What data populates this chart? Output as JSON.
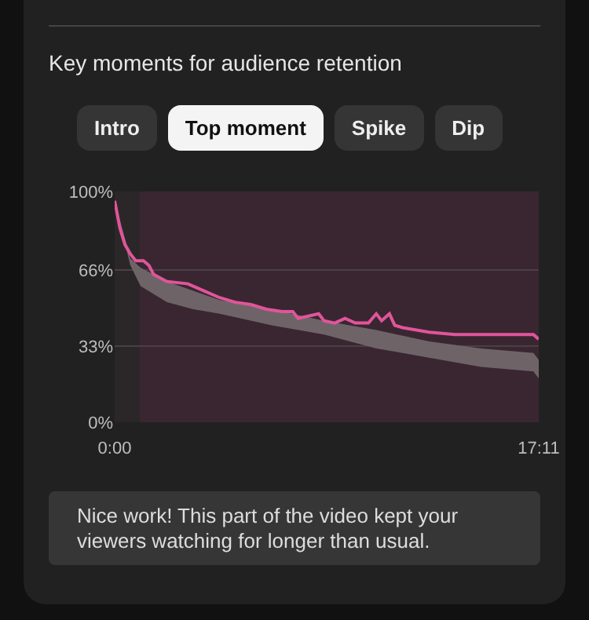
{
  "chart_data": {
    "type": "line",
    "title": "Key moments for audience retention",
    "annotations": [
      "Intro",
      "Top moment",
      "Spike",
      "Dip",
      "Nice work! This part of the video kept your viewers watching for longer than usual."
    ],
    "series": [
      {
        "color": "#6e6468",
        "x": [
          0,
          38,
          63,
          127,
          191,
          255,
          382,
          509,
          636,
          764,
          891,
          1018,
          1031
        ],
        "values": [
          null,
          null,
          null,
          null,
          null,
          null,
          null,
          null,
          null,
          null,
          null,
          null,
          null
        ],
        "lower": [
          96,
          68,
          59,
          52,
          49,
          47,
          42,
          38,
          32,
          28,
          24,
          22,
          19
        ],
        "upper": [
          96,
          71,
          67,
          61,
          57,
          53,
          49,
          44,
          40,
          35,
          32,
          30,
          27
        ]
      },
      {
        "color": "#e0559a",
        "x": [
          0,
          13,
          25,
          38,
          51,
          70,
          83,
          95,
          127,
          178,
          216,
          255,
          293,
          331,
          369,
          407,
          433,
          446,
          496,
          509,
          535,
          560,
          585,
          617,
          636,
          649,
          668,
          681,
          700,
          764,
          827,
          891,
          955,
          980,
          1018,
          1031
        ],
        "values": [
          96,
          84,
          77,
          73,
          70,
          70,
          68,
          64,
          61,
          60,
          57,
          54,
          52,
          51,
          49,
          48,
          48,
          45,
          47,
          44,
          43,
          45,
          43,
          43,
          47,
          44,
          47,
          42,
          41,
          39,
          38,
          38,
          38,
          38,
          38,
          36
        ]
      }
    ],
    "xlim": [
      0,
      1031
    ],
    "xticks": [
      {
        "value": 0,
        "label": "0:00"
      },
      {
        "value": 1031,
        "label": "17:11"
      }
    ],
    "ylim": [
      0,
      100
    ],
    "yticks": [
      {
        "value": 0,
        "label": "0%"
      },
      {
        "value": 33,
        "label": "33%"
      },
      {
        "value": 66,
        "label": "66%"
      },
      {
        "value": 100,
        "label": "100%"
      }
    ],
    "bands": [
      {
        "axis": "x",
        "from": 61,
        "to": 1031,
        "color": "#3a2631"
      }
    ],
    "grid": "y"
  }
}
